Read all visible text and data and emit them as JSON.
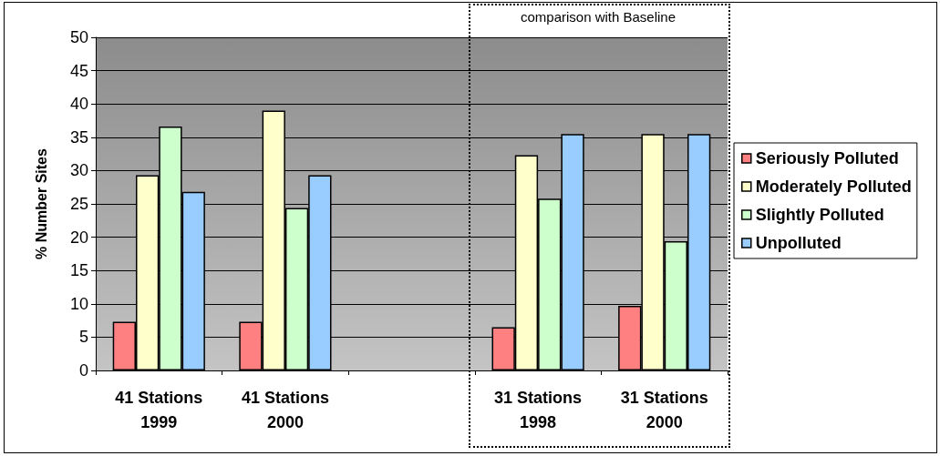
{
  "chart_data": {
    "type": "bar",
    "categories": [
      "41 Stations\n1999",
      "41 Stations\n2000",
      null,
      "31 Stations\n1998",
      "31 Stations\n2000"
    ],
    "series": [
      {
        "name": "Seriously Polluted",
        "color": "#ff8080",
        "values": [
          7.3,
          7.3,
          null,
          6.5,
          9.7
        ]
      },
      {
        "name": "Moderately Polluted",
        "color": "#ffffcc",
        "values": [
          29.3,
          39.0,
          null,
          32.3,
          35.5
        ]
      },
      {
        "name": "Slightly Polluted",
        "color": "#ccffcc",
        "values": [
          36.6,
          24.4,
          null,
          25.8,
          19.4
        ]
      },
      {
        "name": "Unpolluted",
        "color": "#99ccff",
        "values": [
          26.8,
          29.3,
          null,
          35.5,
          35.5
        ]
      }
    ],
    "ylabel": "% Number Sites",
    "ylim": [
      0,
      50
    ],
    "yticks": [
      0,
      5,
      10,
      15,
      20,
      25,
      30,
      35,
      40,
      45,
      50
    ],
    "grid": "y",
    "legend": "right",
    "annotations": [
      "comparison with Baseline"
    ]
  }
}
